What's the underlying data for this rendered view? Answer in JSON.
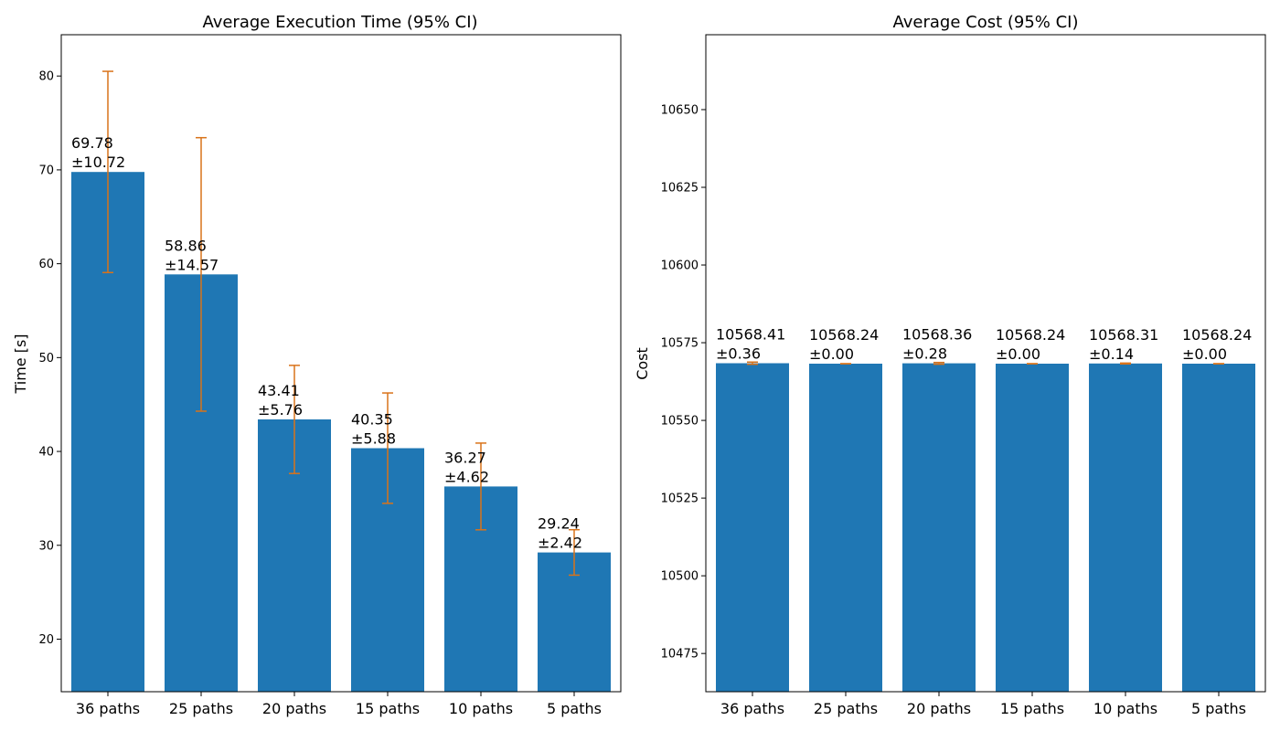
{
  "chart_data": [
    {
      "type": "bar",
      "title": "Average Execution Time (95% CI)",
      "xlabel": "",
      "ylabel": "Time [s]",
      "categories": [
        "36 paths",
        "25 paths",
        "20 paths",
        "15 paths",
        "10 paths",
        "5 paths"
      ],
      "values": [
        69.78,
        58.86,
        43.41,
        40.35,
        36.27,
        29.24
      ],
      "errors": [
        10.72,
        14.57,
        5.76,
        5.88,
        4.62,
        2.42
      ],
      "value_labels": [
        "69.78",
        "58.86",
        "43.41",
        "40.35",
        "36.27",
        "29.24"
      ],
      "error_labels": [
        "±10.72",
        "±14.57",
        "±5.76",
        "±5.88",
        "±4.62",
        "±2.42"
      ],
      "ylim": [
        14.4,
        84.4
      ],
      "yticks": [
        20,
        30,
        40,
        50,
        60,
        70,
        80
      ],
      "ytick_labels": [
        "20",
        "30",
        "40",
        "50",
        "60",
        "70",
        "80"
      ],
      "bar_color": "#1f77b4",
      "error_color": "#d9731a",
      "grid": false,
      "legend": "none"
    },
    {
      "type": "bar",
      "title": "Average Cost (95% CI)",
      "xlabel": "",
      "ylabel": "Cost",
      "categories": [
        "36 paths",
        "25 paths",
        "20 paths",
        "15 paths",
        "10 paths",
        "5 paths"
      ],
      "values": [
        10568.41,
        10568.24,
        10568.36,
        10568.24,
        10568.31,
        10568.24
      ],
      "errors": [
        0.36,
        0.0,
        0.28,
        0.0,
        0.14,
        0.0
      ],
      "value_labels": [
        "10568.41",
        "10568.24",
        "10568.36",
        "10568.24",
        "10568.31",
        "10568.24"
      ],
      "error_labels": [
        "±0.36",
        "±0.00",
        "±0.28",
        "±0.00",
        "±0.14",
        "±0.00"
      ],
      "ylim": [
        10462.7,
        10674.1
      ],
      "yticks": [
        10475,
        10500,
        10525,
        10550,
        10575,
        10600,
        10625,
        10650
      ],
      "ytick_labels": [
        "10475",
        "10500",
        "10525",
        "10550",
        "10575",
        "10600",
        "10625",
        "10650"
      ],
      "bar_color": "#1f77b4",
      "error_color": "#d9731a",
      "grid": false,
      "legend": "none"
    }
  ]
}
